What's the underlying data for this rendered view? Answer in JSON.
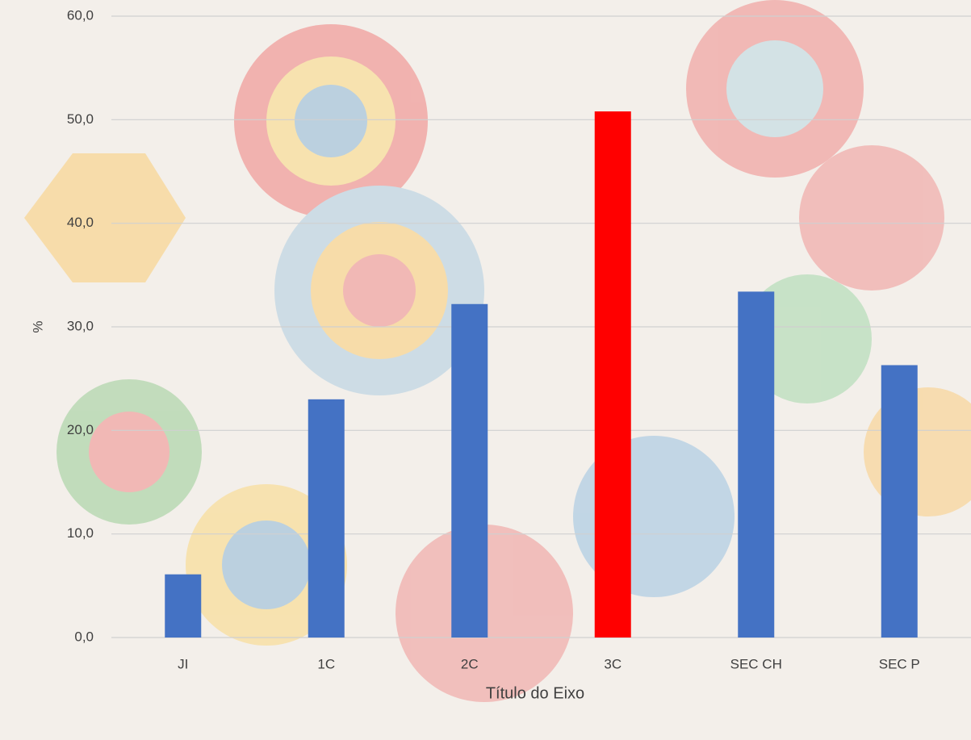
{
  "chart_data": {
    "type": "bar",
    "categories": [
      "JI",
      "1C",
      "2C",
      "3C",
      "SEC CH",
      "SEC P"
    ],
    "values": [
      6.1,
      23.0,
      32.2,
      50.8,
      33.4,
      26.3
    ],
    "colors": [
      "#4472c4",
      "#4472c4",
      "#4472c4",
      "#ff0000",
      "#4472c4",
      "#4472c4"
    ],
    "ylabel": "%",
    "xlabel": "Título do Eixo",
    "ylim": [
      0,
      60
    ],
    "yticks": [
      {
        "value": 0,
        "label": "0,0"
      },
      {
        "value": 10,
        "label": "10,0"
      },
      {
        "value": 20,
        "label": "20,0"
      },
      {
        "value": 30,
        "label": "30,0"
      },
      {
        "value": 40,
        "label": "40,0"
      },
      {
        "value": 50,
        "label": "50,0"
      },
      {
        "value": 60,
        "label": "60,0"
      }
    ],
    "grid": true
  }
}
